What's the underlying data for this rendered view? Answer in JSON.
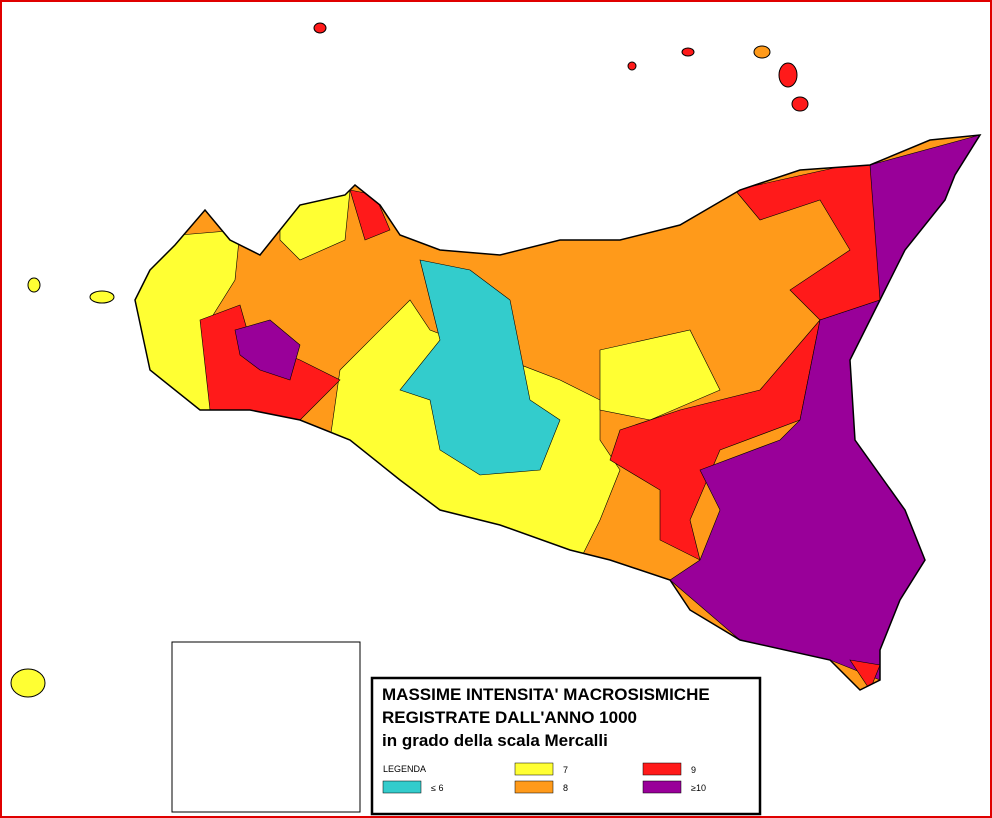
{
  "legend": {
    "title": [
      "MASSIME INTENSITA' MACROSISMICHE",
      "REGISTRATE DALL'ANNO 1000",
      "in grado della scala Mercalli"
    ],
    "heading": "LEGENDA",
    "items": [
      {
        "label": "≤ 6",
        "color": "#33cccc"
      },
      {
        "label": "7",
        "color": "#ffff33"
      },
      {
        "label": "8",
        "color": "#ff9a1a"
      },
      {
        "label": "9",
        "color": "#ff1a1a"
      },
      {
        "label": "≥10",
        "color": "#990099"
      }
    ]
  }
}
